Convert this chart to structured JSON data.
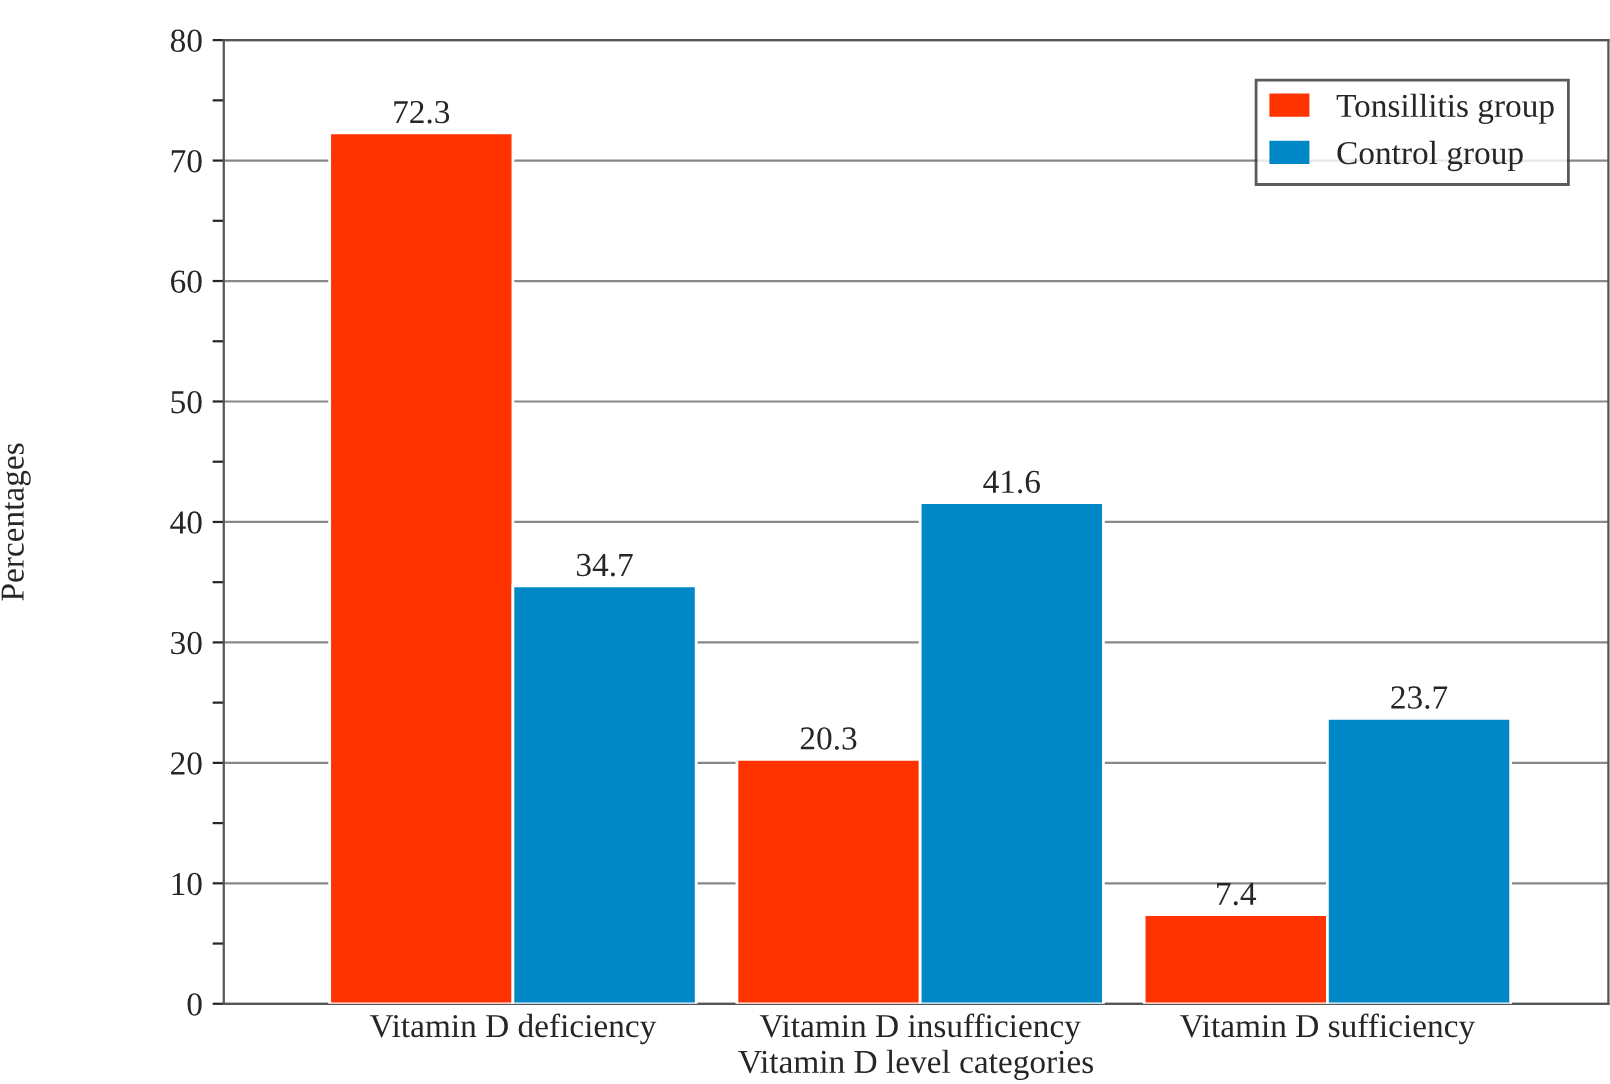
{
  "chart_data": {
    "type": "bar",
    "xlabel": "Vitamin D level categories",
    "ylabel": "Percentages",
    "categories": [
      "Vitamin D deficiency",
      "Vitamin D insufficiency",
      "Vitamin D sufficiency"
    ],
    "series": [
      {
        "name": "Tonsillitis group",
        "color": "#ff3300",
        "values": [
          72.3,
          20.3,
          7.4
        ]
      },
      {
        "name": "Control group",
        "color": "#0088c6",
        "values": [
          34.7,
          41.6,
          23.7
        ]
      }
    ],
    "ylim": [
      0,
      80
    ],
    "yticks": [
      0,
      {
        "value": 5,
        "label": null
      },
      10,
      {
        "value": 15,
        "label": null
      },
      20,
      {
        "value": 25,
        "label": null
      },
      30,
      {
        "value": 35,
        "label": null
      },
      40,
      {
        "value": 45,
        "label": null
      },
      50,
      {
        "value": 55,
        "label": null
      },
      60,
      {
        "value": 65,
        "label": null
      },
      70,
      {
        "value": 75,
        "label": null
      },
      80
    ],
    "grid": "y",
    "legend": "top right",
    "data_labels": true
  }
}
